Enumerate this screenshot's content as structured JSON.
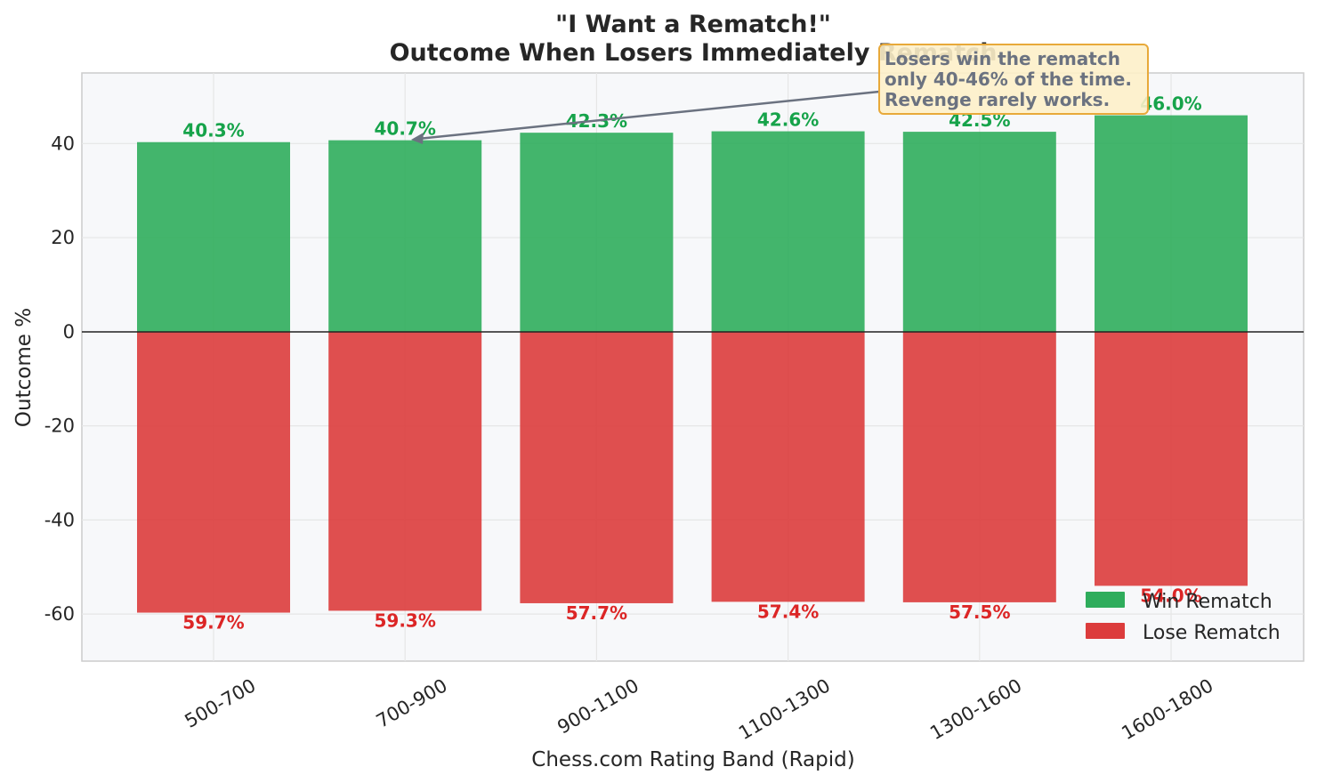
{
  "chart_data": {
    "type": "bar",
    "title": "\"I Want a Rematch!\"",
    "subtitle": "Outcome When Losers Immediately Rematch",
    "xlabel": "Chess.com Rating Band (Rapid)",
    "ylabel": "Outcome %",
    "ylim": [
      -70,
      55
    ],
    "yticks": [
      -60,
      -40,
      -20,
      0,
      20,
      40
    ],
    "grid": true,
    "legend_position": "bottom-right",
    "categories": [
      "500-700",
      "700-900",
      "900-1100",
      "1100-1300",
      "1300-1600",
      "1600-1800"
    ],
    "series": [
      {
        "name": "Win Rematch",
        "color": "#2fad5c",
        "label_color": "#16a34a",
        "values": [
          40.3,
          40.7,
          42.3,
          42.6,
          42.5,
          46.0
        ],
        "labels": [
          "40.3%",
          "40.7%",
          "42.3%",
          "42.6%",
          "42.5%",
          "46.0%"
        ]
      },
      {
        "name": "Lose Rematch",
        "color": "#dc3c3c",
        "label_color": "#dc2626",
        "values": [
          -59.7,
          -59.3,
          -57.7,
          -57.4,
          -57.5,
          -54.0
        ],
        "labels": [
          "59.7%",
          "59.3%",
          "57.7%",
          "57.4%",
          "57.5%",
          "54.0%"
        ]
      }
    ],
    "annotation": {
      "lines": [
        "Losers win the rematch",
        "only 40-46% of the time.",
        "Revenge rarely works."
      ],
      "points_to_category": "700-900",
      "points_to_value": 40.7
    }
  }
}
